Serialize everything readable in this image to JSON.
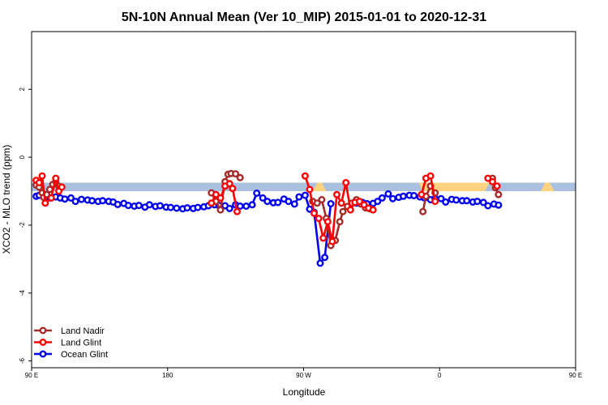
{
  "chart_data": {
    "type": "line",
    "title": "5N-10N Annual Mean (Ver 10_MIP)   2015-01-01 to 2020-12-31",
    "xlabel": "Longitude",
    "ylabel": "XCO2 - MLO trend (ppm)",
    "xlim": [
      90,
      450
    ],
    "ylim": [
      -6.2,
      3.7
    ],
    "x_ticks": [
      {
        "value": 90,
        "label": "90 E"
      },
      {
        "value": 180,
        "label": "180"
      },
      {
        "value": 270,
        "label": "90 W"
      },
      {
        "value": 360,
        "label": "0"
      },
      {
        "value": 450,
        "label": "90 E"
      },
      {
        "value": 540,
        "label": "180"
      }
    ],
    "y_ticks": [
      {
        "value": -6,
        "label": "-6"
      },
      {
        "value": -4,
        "label": "-4"
      },
      {
        "value": -2,
        "label": "-2"
      },
      {
        "value": 0,
        "label": "0"
      },
      {
        "value": 2,
        "label": "2"
      }
    ],
    "band": {
      "y_low": -1.0,
      "y_high": -0.75,
      "color": "#aac0de"
    },
    "highlight_color": "#fed280",
    "highlight_regions": [
      [
        [
          279,
          -0.75
        ],
        [
          282,
          -0.75
        ],
        [
          285,
          -1.0
        ],
        [
          276,
          -1.0
        ]
      ],
      [
        [
          346,
          -0.75
        ],
        [
          392,
          -0.75
        ],
        [
          389,
          -1.0
        ],
        [
          349,
          -1.0
        ]
      ],
      [
        [
          384,
          -0.75
        ],
        [
          393,
          -0.75
        ],
        [
          390,
          -1.0
        ],
        [
          381,
          -1.0
        ]
      ],
      [
        [
          430,
          -0.75
        ],
        [
          433,
          -0.75
        ],
        [
          436,
          -1.0
        ],
        [
          427,
          -1.0
        ]
      ]
    ],
    "legend_position": "bottom-left",
    "series": [
      {
        "name": "Ocean Glint",
        "color": "#0000ee",
        "segments": [
          [
            [
              93,
              -1.15
            ],
            [
              95,
              -1.12
            ],
            [
              99,
              -1.1
            ],
            [
              102,
              -1.2
            ],
            [
              106,
              -1.17
            ],
            [
              109,
              -1.2
            ],
            [
              112,
              -1.23
            ],
            [
              116,
              -1.2
            ],
            [
              119,
              -1.3
            ],
            [
              123,
              -1.24
            ],
            [
              127,
              -1.26
            ],
            [
              130,
              -1.28
            ],
            [
              134,
              -1.3
            ],
            [
              137,
              -1.28
            ],
            [
              141,
              -1.3
            ],
            [
              144,
              -1.32
            ],
            [
              147,
              -1.39
            ],
            [
              151,
              -1.36
            ],
            [
              154,
              -1.42
            ],
            [
              158,
              -1.44
            ],
            [
              161,
              -1.42
            ],
            [
              165,
              -1.47
            ],
            [
              168,
              -1.4
            ],
            [
              172,
              -1.45
            ],
            [
              175,
              -1.43
            ],
            [
              179,
              -1.47
            ],
            [
              182,
              -1.48
            ],
            [
              186,
              -1.5
            ],
            [
              190,
              -1.52
            ],
            [
              193,
              -1.49
            ],
            [
              197,
              -1.51
            ],
            [
              200,
              -1.48
            ],
            [
              204,
              -1.46
            ],
            [
              207,
              -1.43
            ],
            [
              211,
              -1.4
            ],
            [
              214,
              -1.42
            ],
            [
              218,
              -1.43
            ],
            [
              221,
              -1.51
            ],
            [
              225,
              -1.4
            ],
            [
              228,
              -1.44
            ],
            [
              232,
              -1.44
            ],
            [
              236,
              -1.4
            ],
            [
              239,
              -1.06
            ],
            [
              243,
              -1.2
            ],
            [
              246,
              -1.3
            ],
            [
              250,
              -1.34
            ],
            [
              253,
              -1.33
            ],
            [
              257,
              -1.23
            ],
            [
              260,
              -1.3
            ],
            [
              264,
              -1.38
            ],
            [
              267,
              -1.17
            ],
            [
              271,
              -1.12
            ],
            [
              274,
              -1.53
            ],
            [
              277,
              -1.62
            ],
            [
              281,
              -3.12
            ],
            [
              284,
              -2.95
            ],
            [
              288,
              -1.37
            ]
          ],
          [
            [
              305,
              -1.35
            ],
            [
              309,
              -1.33
            ],
            [
              312,
              -1.37
            ],
            [
              316,
              -1.36
            ],
            [
              319,
              -1.3
            ],
            [
              322,
              -1.2
            ],
            [
              326,
              -1.08
            ],
            [
              329,
              -1.22
            ],
            [
              333,
              -1.18
            ],
            [
              336,
              -1.15
            ],
            [
              340,
              -1.12
            ],
            [
              343,
              -1.13
            ],
            [
              347,
              -1.17
            ],
            [
              350,
              -1.2
            ],
            [
              354,
              -1.25
            ],
            [
              357,
              -1.22
            ],
            [
              361,
              -1.22
            ],
            [
              364,
              -1.32
            ],
            [
              368,
              -1.24
            ],
            [
              371,
              -1.26
            ],
            [
              375,
              -1.28
            ],
            [
              378,
              -1.28
            ],
            [
              382,
              -1.32
            ],
            [
              385,
              -1.3
            ],
            [
              389,
              -1.33
            ],
            [
              392,
              -1.43
            ],
            [
              396,
              -1.38
            ],
            [
              399,
              -1.41
            ]
          ]
        ]
      },
      {
        "name": "Land Nadir",
        "color": "#a52a2a",
        "segments": [
          [
            [
              93,
              -0.82
            ],
            [
              95,
              -0.88
            ],
            [
              97,
              -1.05
            ],
            [
              98,
              -1.18
            ],
            [
              100,
              -1.1
            ],
            [
              102,
              -0.95
            ],
            [
              104,
              -0.8
            ],
            [
              106,
              -0.72
            ],
            [
              108,
              -0.85
            ]
          ],
          [
            [
              209,
              -1.05
            ],
            [
              212,
              -1.3
            ],
            [
              215,
              -1.55
            ],
            [
              218,
              -0.72
            ],
            [
              220,
              -0.5
            ],
            [
              222,
              -0.48
            ],
            [
              225,
              -0.49
            ],
            [
              228,
              -0.6
            ]
          ],
          [
            [
              276,
              -1.3
            ],
            [
              279,
              -1.35
            ],
            [
              282,
              -1.25
            ],
            [
              285,
              -1.8
            ],
            [
              288,
              -2.6
            ],
            [
              291,
              -2.45
            ],
            [
              294,
              -1.9
            ],
            [
              296,
              -1.6
            ],
            [
              299,
              -1.45
            ],
            [
              302,
              -1.35
            ],
            [
              305,
              -1.25
            ],
            [
              308,
              -1.38
            ],
            [
              311,
              -1.49
            ],
            [
              314,
              -1.52
            ]
          ],
          [
            [
              349,
              -1.6
            ],
            [
              351,
              -1.15
            ],
            [
              354,
              -0.85
            ],
            [
              357,
              -1.05
            ]
          ],
          [
            [
              395,
              -0.62
            ],
            [
              397,
              -0.9
            ],
            [
              399,
              -1.1
            ]
          ]
        ]
      },
      {
        "name": "Land Glint",
        "color": "#ff0000",
        "segments": [
          [
            [
              93,
              -0.68
            ],
            [
              95,
              -0.75
            ],
            [
              97,
              -0.55
            ],
            [
              99,
              -1.35
            ],
            [
              103,
              -1.2
            ],
            [
              106,
              -0.62
            ],
            [
              108,
              -1.0
            ],
            [
              110,
              -0.88
            ]
          ],
          [
            [
              209,
              -1.35
            ],
            [
              212,
              -1.1
            ],
            [
              215,
              -1.2
            ],
            [
              218,
              -0.85
            ],
            [
              221,
              -0.78
            ],
            [
              223,
              -0.92
            ],
            [
              226,
              -1.6
            ]
          ],
          [
            [
              271,
              -0.55
            ],
            [
              274,
              -0.95
            ],
            [
              277,
              -1.65
            ],
            [
              280,
              -1.8
            ],
            [
              283,
              -2.38
            ],
            [
              286,
              -1.9
            ],
            [
              289,
              -2.48
            ],
            [
              292,
              -1.1
            ],
            [
              295,
              -1.35
            ],
            [
              298,
              -0.75
            ],
            [
              301,
              -1.55
            ],
            [
              304,
              -1.33
            ],
            [
              307,
              -1.3
            ],
            [
              310,
              -1.4
            ],
            [
              313,
              -1.5
            ],
            [
              316,
              -1.55
            ]
          ],
          [
            [
              348,
              -1.1
            ],
            [
              351,
              -0.62
            ],
            [
              354,
              -0.55
            ],
            [
              357,
              -1.3
            ]
          ],
          [
            [
              392,
              -0.62
            ],
            [
              395,
              -0.72
            ],
            [
              398,
              -0.85
            ]
          ]
        ]
      }
    ]
  }
}
